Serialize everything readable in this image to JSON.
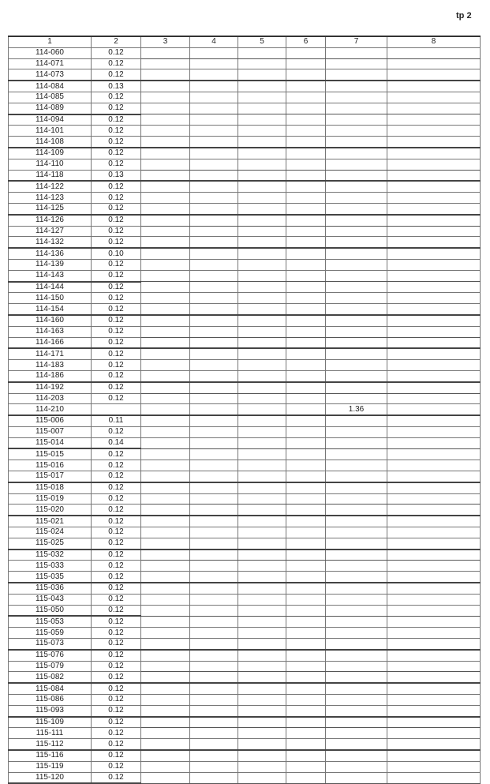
{
  "page_mark": "tp 2",
  "headers": [
    "1",
    "2",
    "3",
    "4",
    "5",
    "6",
    "7",
    "8"
  ],
  "rows": [
    [
      "114-060",
      "0.12",
      "",
      "",
      "",
      "",
      "",
      ""
    ],
    [
      "114-071",
      "0.12",
      "",
      "",
      "",
      "",
      "",
      ""
    ],
    [
      "114-073",
      "0.12",
      "",
      "",
      "",
      "",
      "",
      ""
    ],
    [
      "114-084",
      "0.13",
      "",
      "",
      "",
      "",
      "",
      ""
    ],
    [
      "114-085",
      "0.12",
      "",
      "",
      "",
      "",
      "",
      ""
    ],
    [
      "114-089",
      "0.12",
      "",
      "",
      "",
      "",
      "",
      ""
    ],
    [
      "114-094",
      "0.12",
      "",
      "",
      "",
      "",
      "",
      ""
    ],
    [
      "114-101",
      "0.12",
      "",
      "",
      "",
      "",
      "",
      ""
    ],
    [
      "114-108",
      "0.12",
      "",
      "",
      "",
      "",
      "",
      ""
    ],
    [
      "114-109",
      "0.12",
      "",
      "",
      "",
      "",
      "",
      ""
    ],
    [
      "114-110",
      "0.12",
      "",
      "",
      "",
      "",
      "",
      ""
    ],
    [
      "114-118",
      "0.13",
      "",
      "",
      "",
      "",
      "",
      ""
    ],
    [
      "114-122",
      "0.12",
      "",
      "",
      "",
      "",
      "",
      ""
    ],
    [
      "114-123",
      "0.12",
      "",
      "",
      "",
      "",
      "",
      ""
    ],
    [
      "114-125",
      "0.12",
      "",
      "",
      "",
      "",
      "",
      ""
    ],
    [
      "114-126",
      "0.12",
      "",
      "",
      "",
      "",
      "",
      ""
    ],
    [
      "114-127",
      "0.12",
      "",
      "",
      "",
      "",
      "",
      ""
    ],
    [
      "114-132",
      "0.12",
      "",
      "",
      "",
      "",
      "",
      ""
    ],
    [
      "114-136",
      "0.10",
      "",
      "",
      "",
      "",
      "",
      ""
    ],
    [
      "114-139",
      "0.12",
      "",
      "",
      "",
      "",
      "",
      ""
    ],
    [
      "114-143",
      "0.12",
      "",
      "",
      "",
      "",
      "",
      ""
    ],
    [
      "114-144",
      "0.12",
      "",
      "",
      "",
      "",
      "",
      ""
    ],
    [
      "114-150",
      "0.12",
      "",
      "",
      "",
      "",
      "",
      ""
    ],
    [
      "114-154",
      "0.12",
      "",
      "",
      "",
      "",
      "",
      ""
    ],
    [
      "114-160",
      "0.12",
      "",
      "",
      "",
      "",
      "",
      ""
    ],
    [
      "114-163",
      "0.12",
      "",
      "",
      "",
      "",
      "",
      ""
    ],
    [
      "114-166",
      "0.12",
      "",
      "",
      "",
      "",
      "",
      ""
    ],
    [
      "114-171",
      "0.12",
      "",
      "",
      "",
      "",
      "",
      ""
    ],
    [
      "114-183",
      "0.12",
      "",
      "",
      "",
      "",
      "",
      ""
    ],
    [
      "114-186",
      "0.12",
      "",
      "",
      "",
      "",
      "",
      ""
    ],
    [
      "114-192",
      "0.12",
      "",
      "",
      "",
      "",
      "",
      ""
    ],
    [
      "114-203",
      "0.12",
      "",
      "",
      "",
      "",
      "",
      ""
    ],
    [
      "114-210",
      "",
      "",
      "",
      "",
      "",
      "1.36",
      ""
    ],
    [
      "115-006",
      "0.11",
      "",
      "",
      "",
      "",
      "",
      ""
    ],
    [
      "115-007",
      "0.12",
      "",
      "",
      "",
      "",
      "",
      ""
    ],
    [
      "115-014",
      "0.14",
      "",
      "",
      "",
      "",
      "",
      ""
    ],
    [
      "115-015",
      "0.12",
      "",
      "",
      "",
      "",
      "",
      ""
    ],
    [
      "115-016",
      "0.12",
      "",
      "",
      "",
      "",
      "",
      ""
    ],
    [
      "115-017",
      "0.12",
      "",
      "",
      "",
      "",
      "",
      ""
    ],
    [
      "115-018",
      "0.12",
      "",
      "",
      "",
      "",
      "",
      ""
    ],
    [
      "115-019",
      "0.12",
      "",
      "",
      "",
      "",
      "",
      ""
    ],
    [
      "115-020",
      "0.12",
      "",
      "",
      "",
      "",
      "",
      ""
    ],
    [
      "115-021",
      "0.12",
      "",
      "",
      "",
      "",
      "",
      ""
    ],
    [
      "115-024",
      "0.12",
      "",
      "",
      "",
      "",
      "",
      ""
    ],
    [
      "115-025",
      "0.12",
      "",
      "",
      "",
      "",
      "",
      ""
    ],
    [
      "115-032",
      "0.12",
      "",
      "",
      "",
      "",
      "",
      ""
    ],
    [
      "115-033",
      "0.12",
      "",
      "",
      "",
      "",
      "",
      ""
    ],
    [
      "115-035",
      "0.12",
      "",
      "",
      "",
      "",
      "",
      ""
    ],
    [
      "115-036",
      "0.12",
      "",
      "",
      "",
      "",
      "",
      ""
    ],
    [
      "115-043",
      "0.12",
      "",
      "",
      "",
      "",
      "",
      ""
    ],
    [
      "115-050",
      "0.12",
      "",
      "",
      "",
      "",
      "",
      ""
    ],
    [
      "115-053",
      "0.12",
      "",
      "",
      "",
      "",
      "",
      ""
    ],
    [
      "115-059",
      "0.12",
      "",
      "",
      "",
      "",
      "",
      ""
    ],
    [
      "115-073",
      "0.12",
      "",
      "",
      "",
      "",
      "",
      ""
    ],
    [
      "115-076",
      "0.12",
      "",
      "",
      "",
      "",
      "",
      ""
    ],
    [
      "115-079",
      "0.12",
      "",
      "",
      "",
      "",
      "",
      ""
    ],
    [
      "115-082",
      "0.12",
      "",
      "",
      "",
      "",
      "",
      ""
    ],
    [
      "115-084",
      "0.12",
      "",
      "",
      "",
      "",
      "",
      ""
    ],
    [
      "115-086",
      "0.12",
      "",
      "",
      "",
      "",
      "",
      ""
    ],
    [
      "115-093",
      "0.12",
      "",
      "",
      "",
      "",
      "",
      ""
    ],
    [
      "115-109",
      "0.12",
      "",
      "",
      "",
      "",
      "",
      ""
    ],
    [
      "115-111",
      "0.12",
      "",
      "",
      "",
      "",
      "",
      ""
    ],
    [
      "115-112",
      "0.12",
      "",
      "",
      "",
      "",
      "",
      ""
    ],
    [
      "115-116",
      "0.12",
      "",
      "",
      "",
      "",
      "",
      ""
    ],
    [
      "115-119",
      "0.12",
      "",
      "",
      "",
      "",
      "",
      ""
    ],
    [
      "115-120",
      "0.12",
      "",
      "",
      "",
      "",
      "",
      ""
    ]
  ]
}
